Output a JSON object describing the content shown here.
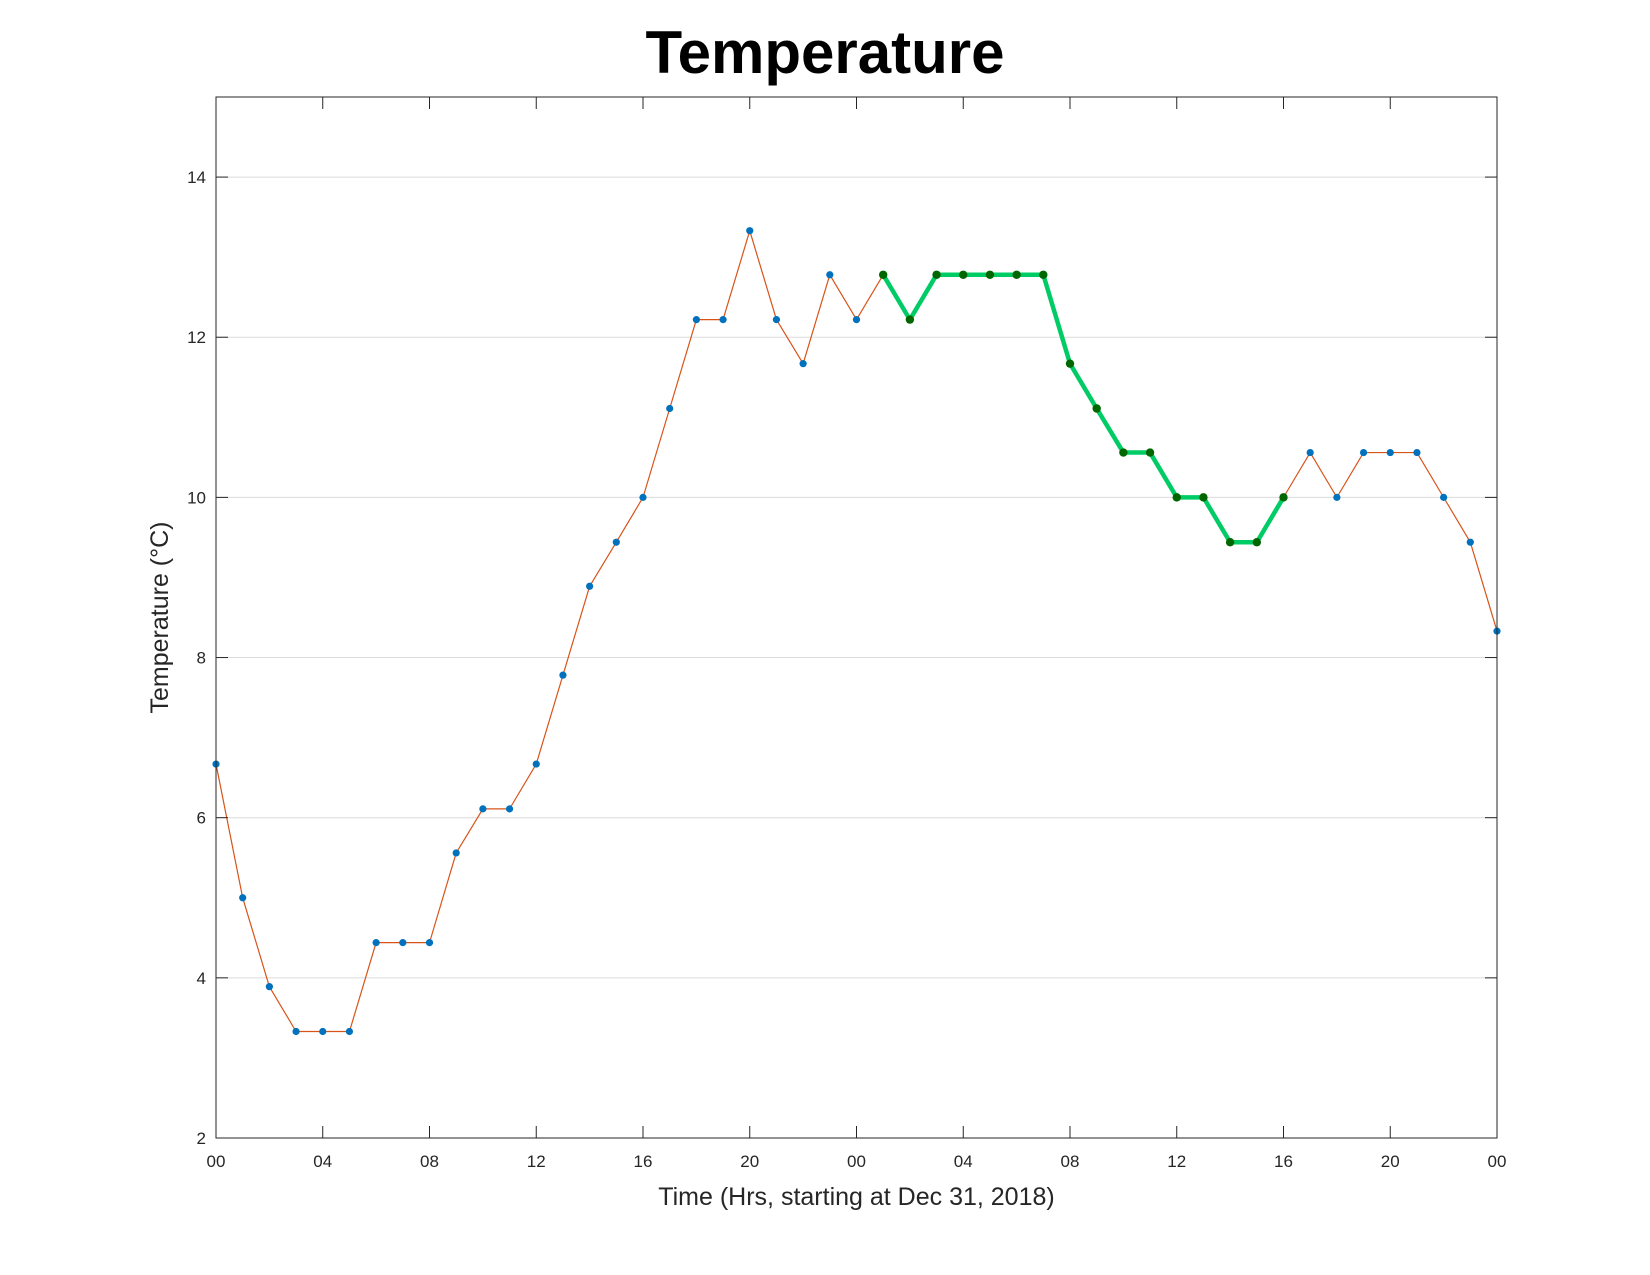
{
  "chart_data": {
    "type": "line",
    "title": "Temperature",
    "xlabel": "Time (Hrs, starting at Dec 31, 2018)",
    "ylabel": "Temperature (°C)",
    "xlim": [
      "2018-12-31 00:00",
      "2019-01-02 00:00"
    ],
    "ylim": [
      2,
      15
    ],
    "x_tick_labels": [
      "00",
      "04",
      "08",
      "12",
      "16",
      "20",
      "00",
      "04",
      "08",
      "12",
      "16",
      "20",
      "00"
    ],
    "y_ticks": [
      2,
      4,
      6,
      8,
      10,
      12,
      14
    ],
    "grid": "horizontal",
    "x": [
      "2018-12-31 00:00",
      "2018-12-31 01:00",
      "2018-12-31 02:00",
      "2018-12-31 03:00",
      "2018-12-31 04:00",
      "2018-12-31 05:00",
      "2018-12-31 06:00",
      "2018-12-31 07:00",
      "2018-12-31 08:00",
      "2018-12-31 09:00",
      "2018-12-31 10:00",
      "2018-12-31 11:00",
      "2018-12-31 12:00",
      "2018-12-31 13:00",
      "2018-12-31 14:00",
      "2018-12-31 15:00",
      "2018-12-31 16:00",
      "2018-12-31 17:00",
      "2018-12-31 18:00",
      "2018-12-31 19:00",
      "2018-12-31 20:00",
      "2018-12-31 21:00",
      "2018-12-31 22:00",
      "2018-12-31 23:00",
      "2019-01-01 00:00",
      "2019-01-01 01:00",
      "2019-01-01 02:00",
      "2019-01-01 03:00",
      "2019-01-01 04:00",
      "2019-01-01 05:00",
      "2019-01-01 06:00",
      "2019-01-01 07:00",
      "2019-01-01 08:00",
      "2019-01-01 09:00",
      "2019-01-01 10:00",
      "2019-01-01 11:00",
      "2019-01-01 12:00",
      "2019-01-01 13:00",
      "2019-01-01 14:00",
      "2019-01-01 15:00",
      "2019-01-01 16:00",
      "2019-01-01 17:00",
      "2019-01-01 18:00",
      "2019-01-01 19:00",
      "2019-01-01 20:00",
      "2019-01-01 21:00",
      "2019-01-01 22:00",
      "2019-01-01 23:00",
      "2019-01-02 00:00"
    ],
    "series": [
      {
        "values": [
          6.67,
          5.0,
          3.89,
          3.33,
          3.33,
          3.33,
          4.44,
          4.44,
          4.44,
          5.56,
          6.11,
          6.11,
          6.67,
          7.78,
          8.89,
          9.44,
          10.0,
          11.11,
          12.22,
          12.22,
          13.33,
          12.22,
          11.67,
          12.78,
          12.22,
          12.78,
          12.22,
          12.78,
          12.78,
          12.78,
          12.78,
          12.78,
          11.67,
          11.11,
          10.56,
          10.56,
          10.0,
          10.0,
          9.44,
          9.44,
          10.0,
          10.56,
          10.0,
          10.56,
          10.56,
          10.56,
          10.0,
          9.44,
          8.33
        ],
        "line_color": "#d95319",
        "marker_color": "#0072bd"
      },
      {
        "x": [
          "2019-01-01 01:00",
          "2019-01-01 02:00",
          "2019-01-01 03:00",
          "2019-01-01 04:00",
          "2019-01-01 05:00",
          "2019-01-01 06:00",
          "2019-01-01 07:00",
          "2019-01-01 08:00",
          "2019-01-01 09:00",
          "2019-01-01 10:00",
          "2019-01-01 11:00",
          "2019-01-01 12:00",
          "2019-01-01 13:00",
          "2019-01-01 14:00",
          "2019-01-01 15:00",
          "2019-01-01 16:00"
        ],
        "values": [
          12.78,
          12.22,
          12.78,
          12.78,
          12.78,
          12.78,
          12.78,
          11.67,
          11.11,
          10.56,
          10.56,
          10.0,
          10.0,
          9.44,
          9.44,
          10.0
        ],
        "line_color": "#00cc66",
        "marker_color": "#006600"
      }
    ]
  }
}
